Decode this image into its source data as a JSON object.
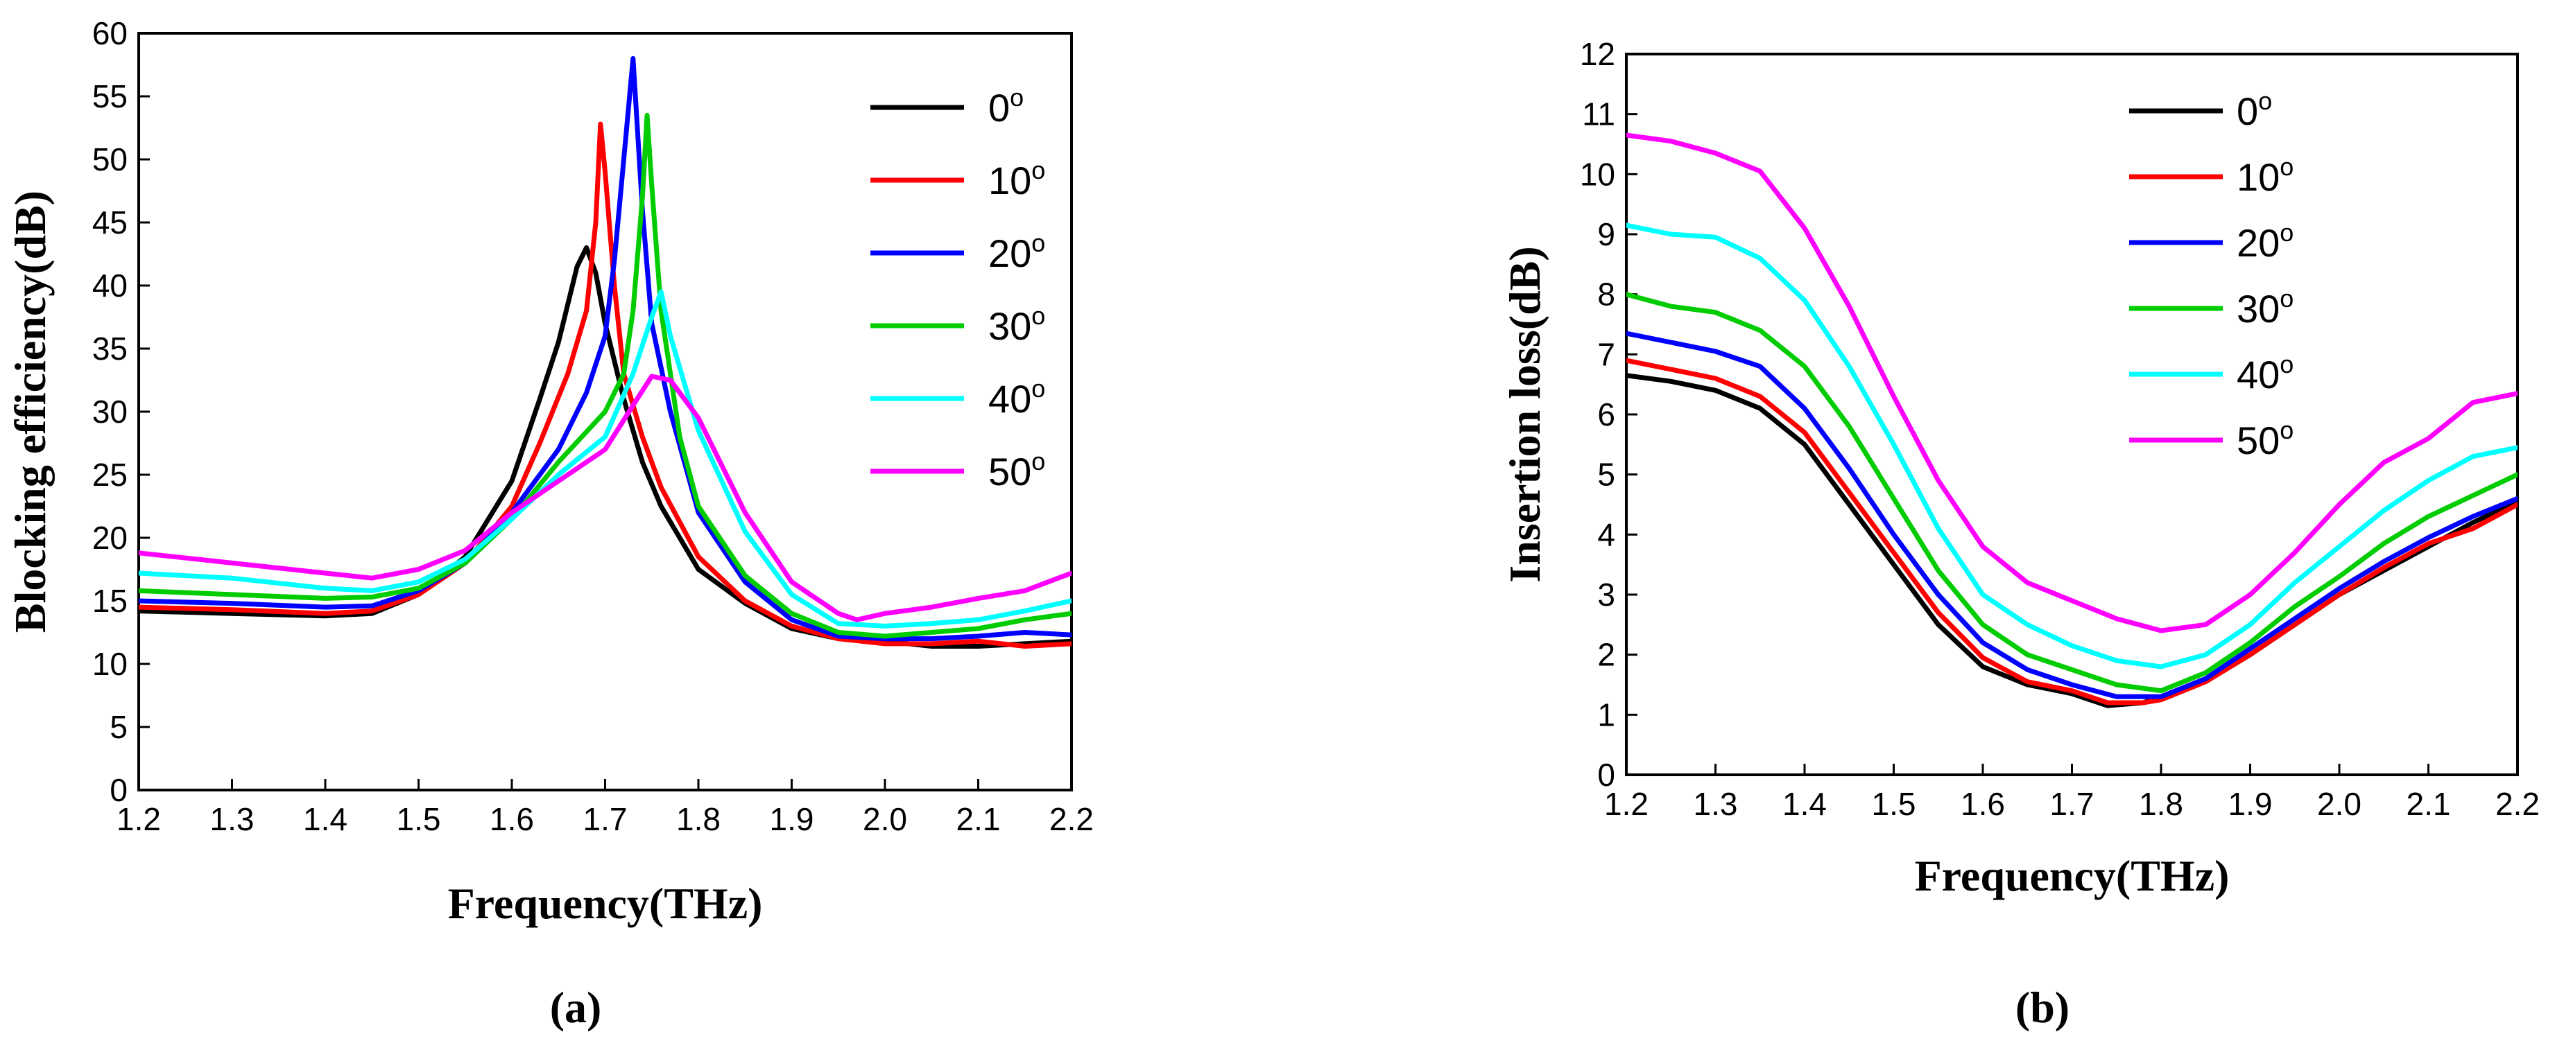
{
  "chart_data": [
    {
      "type": "line",
      "panel_label": "(a)",
      "xlabel": "Frequency(THz)",
      "ylabel": "Blocking efficiency(dB)",
      "xlim": [
        1.2,
        2.2
      ],
      "ylim": [
        0,
        60
      ],
      "xticks": [
        "1.2",
        "1.3",
        "1.4",
        "1.5",
        "1.6",
        "1.7",
        "1.8",
        "1.9",
        "2.0",
        "2.1",
        "2.2"
      ],
      "yticks": [
        "0",
        "5",
        "10",
        "15",
        "20",
        "25",
        "30",
        "35",
        "40",
        "45",
        "50",
        "55",
        "60"
      ],
      "legend_position": "top-right",
      "series": [
        {
          "name": "0",
          "sup": "o",
          "color": "#000000",
          "x": [
            1.2,
            1.3,
            1.4,
            1.45,
            1.5,
            1.55,
            1.6,
            1.63,
            1.65,
            1.67,
            1.68,
            1.69,
            1.7,
            1.72,
            1.74,
            1.76,
            1.8,
            1.85,
            1.9,
            1.95,
            2.0,
            2.05,
            2.1,
            2.15,
            2.2
          ],
          "y": [
            14.2,
            14.0,
            13.8,
            14.0,
            15.5,
            18.5,
            24.5,
            31.0,
            35.5,
            41.5,
            43.0,
            41.0,
            37.0,
            31.0,
            26.0,
            22.5,
            17.5,
            14.8,
            12.8,
            12.0,
            11.8,
            11.4,
            11.4,
            11.6,
            11.8
          ]
        },
        {
          "name": "10",
          "sup": "o",
          "color": "#ff0000",
          "x": [
            1.2,
            1.3,
            1.4,
            1.45,
            1.5,
            1.55,
            1.6,
            1.63,
            1.66,
            1.68,
            1.69,
            1.695,
            1.7,
            1.71,
            1.72,
            1.74,
            1.76,
            1.8,
            1.85,
            1.9,
            1.95,
            2.0,
            2.05,
            2.1,
            2.15,
            2.2
          ],
          "y": [
            14.5,
            14.3,
            14.0,
            14.2,
            15.5,
            18.0,
            22.5,
            27.5,
            33.0,
            38.0,
            45.0,
            52.8,
            49.0,
            40.0,
            33.0,
            28.0,
            24.0,
            18.5,
            15.0,
            13.0,
            12.0,
            11.6,
            11.6,
            11.8,
            11.4,
            11.6
          ]
        },
        {
          "name": "20",
          "sup": "o",
          "color": "#0000ff",
          "x": [
            1.2,
            1.3,
            1.4,
            1.45,
            1.5,
            1.55,
            1.6,
            1.65,
            1.68,
            1.7,
            1.71,
            1.72,
            1.73,
            1.74,
            1.75,
            1.77,
            1.8,
            1.85,
            1.9,
            1.95,
            2.0,
            2.05,
            2.1,
            2.15,
            2.2
          ],
          "y": [
            15.0,
            14.8,
            14.5,
            14.6,
            15.8,
            18.0,
            22.0,
            27.0,
            31.5,
            36.0,
            42.0,
            50.0,
            58.0,
            46.0,
            37.0,
            30.0,
            22.0,
            16.5,
            13.5,
            12.2,
            12.0,
            12.0,
            12.2,
            12.5,
            12.3
          ]
        },
        {
          "name": "30",
          "sup": "o",
          "color": "#00cc00",
          "x": [
            1.2,
            1.3,
            1.4,
            1.45,
            1.5,
            1.55,
            1.6,
            1.65,
            1.7,
            1.72,
            1.73,
            1.74,
            1.745,
            1.75,
            1.76,
            1.78,
            1.8,
            1.85,
            1.9,
            1.95,
            2.0,
            2.05,
            2.1,
            2.15,
            2.2
          ],
          "y": [
            15.8,
            15.5,
            15.2,
            15.3,
            16.0,
            18.0,
            21.5,
            26.0,
            30.0,
            33.0,
            38.0,
            47.0,
            53.5,
            48.0,
            38.0,
            28.0,
            22.5,
            17.0,
            14.0,
            12.5,
            12.2,
            12.5,
            12.8,
            13.5,
            14.0
          ]
        },
        {
          "name": "40",
          "sup": "o",
          "color": "#00ffff",
          "x": [
            1.2,
            1.3,
            1.4,
            1.45,
            1.5,
            1.55,
            1.6,
            1.65,
            1.7,
            1.73,
            1.75,
            1.76,
            1.77,
            1.8,
            1.85,
            1.9,
            1.95,
            2.0,
            2.05,
            2.1,
            2.15,
            2.2
          ],
          "y": [
            17.2,
            16.8,
            16.0,
            15.8,
            16.5,
            18.3,
            21.5,
            25.0,
            28.0,
            33.0,
            37.5,
            39.5,
            36.0,
            28.5,
            20.5,
            15.5,
            13.2,
            13.0,
            13.2,
            13.5,
            14.2,
            15.0
          ]
        },
        {
          "name": "50",
          "sup": "o",
          "color": "#ff00ff",
          "x": [
            1.2,
            1.3,
            1.4,
            1.45,
            1.5,
            1.55,
            1.6,
            1.65,
            1.7,
            1.73,
            1.75,
            1.77,
            1.8,
            1.85,
            1.9,
            1.95,
            1.97,
            2.0,
            2.05,
            2.1,
            2.15,
            2.2
          ],
          "y": [
            18.8,
            18.0,
            17.2,
            16.8,
            17.5,
            19.0,
            22.0,
            24.5,
            27.0,
            30.5,
            32.8,
            32.5,
            29.5,
            22.0,
            16.5,
            14.0,
            13.5,
            14.0,
            14.5,
            15.2,
            15.8,
            17.2
          ]
        }
      ]
    },
    {
      "type": "line",
      "panel_label": "(b)",
      "xlabel": "Frequency(THz)",
      "ylabel": "Insertion loss(dB)",
      "xlim": [
        1.2,
        2.2
      ],
      "ylim": [
        0,
        12
      ],
      "xticks": [
        "1.2",
        "1.3",
        "1.4",
        "1.5",
        "1.6",
        "1.7",
        "1.8",
        "1.9",
        "2.0",
        "2.1",
        "2.2"
      ],
      "yticks": [
        "0",
        "1",
        "2",
        "3",
        "4",
        "5",
        "6",
        "7",
        "8",
        "9",
        "10",
        "11",
        "12"
      ],
      "legend_position": "top-right",
      "series": [
        {
          "name": "0",
          "sup": "o",
          "color": "#000000",
          "x": [
            1.2,
            1.25,
            1.3,
            1.35,
            1.4,
            1.45,
            1.5,
            1.55,
            1.6,
            1.65,
            1.7,
            1.74,
            1.78,
            1.8,
            1.85,
            1.9,
            1.95,
            2.0,
            2.05,
            2.1,
            2.15,
            2.2
          ],
          "y": [
            6.65,
            6.55,
            6.4,
            6.1,
            5.5,
            4.5,
            3.5,
            2.5,
            1.8,
            1.5,
            1.35,
            1.15,
            1.2,
            1.3,
            1.6,
            2.0,
            2.5,
            3.0,
            3.4,
            3.8,
            4.2,
            4.55
          ]
        },
        {
          "name": "10",
          "sup": "o",
          "color": "#ff0000",
          "x": [
            1.2,
            1.25,
            1.3,
            1.35,
            1.4,
            1.45,
            1.5,
            1.55,
            1.6,
            1.65,
            1.7,
            1.74,
            1.78,
            1.8,
            1.85,
            1.9,
            1.95,
            2.0,
            2.05,
            2.1,
            2.15,
            2.2
          ],
          "y": [
            6.9,
            6.75,
            6.6,
            6.3,
            5.7,
            4.7,
            3.7,
            2.7,
            1.95,
            1.55,
            1.4,
            1.2,
            1.2,
            1.25,
            1.55,
            2.0,
            2.5,
            3.0,
            3.45,
            3.85,
            4.1,
            4.5
          ]
        },
        {
          "name": "20",
          "sup": "o",
          "color": "#0000ff",
          "x": [
            1.2,
            1.25,
            1.3,
            1.35,
            1.4,
            1.45,
            1.5,
            1.55,
            1.6,
            1.65,
            1.7,
            1.75,
            1.8,
            1.85,
            1.9,
            1.95,
            2.0,
            2.05,
            2.1,
            2.15,
            2.2
          ],
          "y": [
            7.35,
            7.2,
            7.05,
            6.8,
            6.1,
            5.1,
            4.0,
            3.0,
            2.2,
            1.75,
            1.5,
            1.3,
            1.3,
            1.6,
            2.1,
            2.6,
            3.1,
            3.55,
            3.95,
            4.3,
            4.6
          ]
        },
        {
          "name": "30",
          "sup": "o",
          "color": "#00cc00",
          "x": [
            1.2,
            1.25,
            1.3,
            1.35,
            1.4,
            1.45,
            1.5,
            1.55,
            1.6,
            1.65,
            1.7,
            1.75,
            1.8,
            1.85,
            1.9,
            1.95,
            2.0,
            2.05,
            2.1,
            2.15,
            2.2
          ],
          "y": [
            8.0,
            7.8,
            7.7,
            7.4,
            6.8,
            5.8,
            4.6,
            3.4,
            2.5,
            2.0,
            1.75,
            1.5,
            1.4,
            1.7,
            2.2,
            2.8,
            3.3,
            3.85,
            4.3,
            4.65,
            5.0
          ]
        },
        {
          "name": "40",
          "sup": "o",
          "color": "#00ffff",
          "x": [
            1.2,
            1.25,
            1.3,
            1.35,
            1.4,
            1.45,
            1.5,
            1.55,
            1.6,
            1.65,
            1.7,
            1.75,
            1.8,
            1.85,
            1.9,
            1.95,
            2.0,
            2.05,
            2.1,
            2.15,
            2.2
          ],
          "y": [
            9.15,
            9.0,
            8.95,
            8.6,
            7.9,
            6.8,
            5.5,
            4.1,
            3.0,
            2.5,
            2.15,
            1.9,
            1.8,
            2.0,
            2.5,
            3.2,
            3.8,
            4.4,
            4.9,
            5.3,
            5.45
          ]
        },
        {
          "name": "50",
          "sup": "o",
          "color": "#ff00ff",
          "x": [
            1.2,
            1.25,
            1.3,
            1.35,
            1.4,
            1.45,
            1.5,
            1.55,
            1.6,
            1.65,
            1.7,
            1.75,
            1.8,
            1.85,
            1.9,
            1.95,
            2.0,
            2.05,
            2.1,
            2.15,
            2.2
          ],
          "y": [
            10.65,
            10.55,
            10.35,
            10.05,
            9.1,
            7.8,
            6.3,
            4.9,
            3.8,
            3.2,
            2.9,
            2.6,
            2.4,
            2.5,
            3.0,
            3.7,
            4.5,
            5.2,
            5.6,
            6.2,
            6.35
          ]
        }
      ]
    }
  ]
}
